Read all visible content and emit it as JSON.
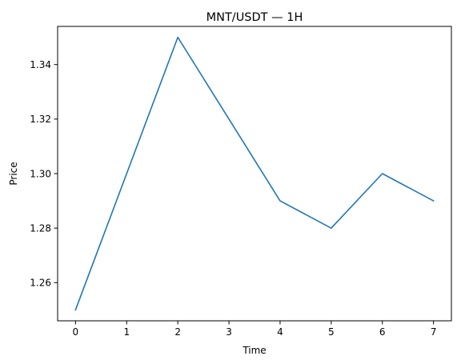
{
  "chart_data": {
    "type": "line",
    "title": "MNT/USDT — 1H",
    "xlabel": "Time",
    "ylabel": "Price",
    "x": [
      0,
      1,
      2,
      3,
      4,
      5,
      6,
      7
    ],
    "series": [
      {
        "values": [
          1.25,
          1.3,
          1.35,
          1.32,
          1.29,
          1.28,
          1.3,
          1.29
        ],
        "color": "#1f77b4"
      }
    ],
    "xlim": [
      -0.35,
      7.35
    ],
    "ylim": [
      1.246,
      1.354
    ],
    "xticks": [
      0,
      1,
      2,
      3,
      4,
      5,
      6,
      7
    ],
    "xtick_labels": [
      "0",
      "1",
      "2",
      "3",
      "4",
      "5",
      "6",
      "7"
    ],
    "yticks": [
      1.26,
      1.28,
      1.3,
      1.32,
      1.34
    ],
    "ytick_labels": [
      "1.26",
      "1.28",
      "1.30",
      "1.32",
      "1.34"
    ],
    "grid": false,
    "legend": "none"
  }
}
